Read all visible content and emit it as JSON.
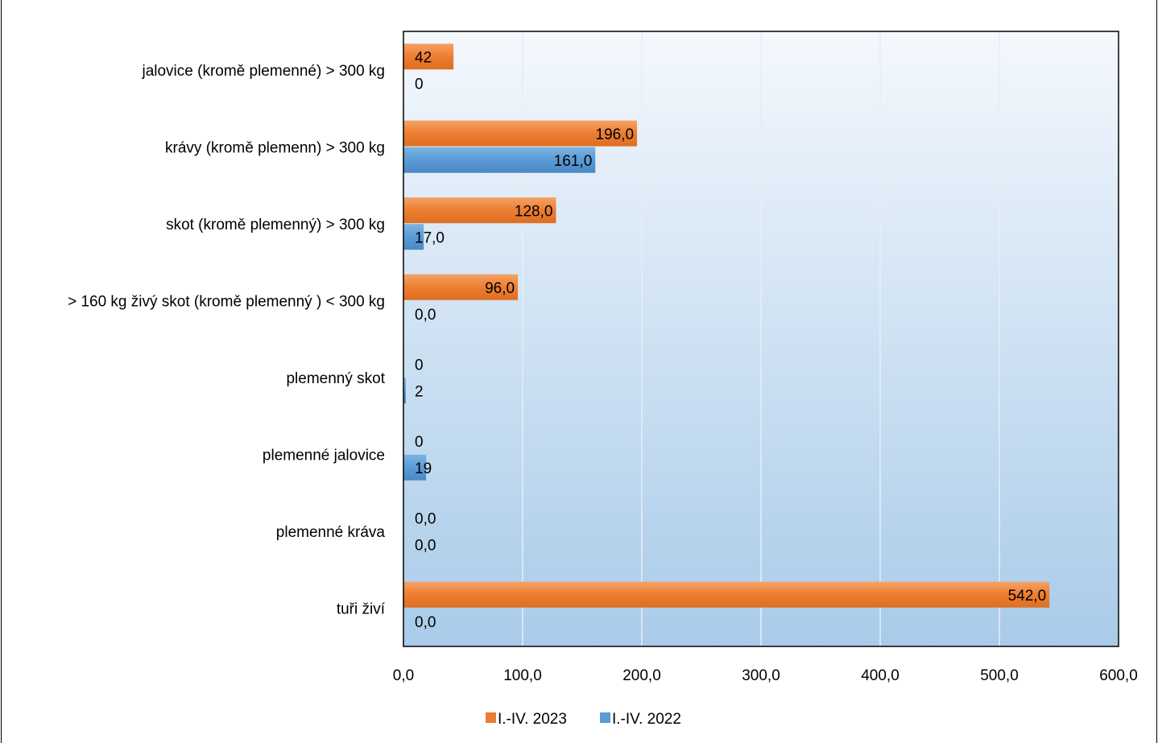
{
  "chart_data": {
    "type": "bar",
    "orientation": "horizontal",
    "categories": [
      "jalovice (kromě plemenné) > 300 kg",
      "krávy (kromě plemenn) > 300 kg",
      "skot (kromě plemenný) > 300 kg",
      "> 160 kg živý skot  (kromě plemenný ) < 300 kg",
      "plemenný skot",
      "plemenné jalovice",
      "plemenné kráva",
      "tuři živí"
    ],
    "series": [
      {
        "name": "I.-IV. 2023",
        "color": "#ED7D31",
        "values": [
          42,
          196,
          128,
          96,
          0,
          0,
          0,
          542
        ],
        "labels": [
          "42",
          "196,0",
          "128,0",
          "96,0",
          "0",
          "0",
          "0,0",
          "542,0"
        ]
      },
      {
        "name": "I.-IV. 2022",
        "color": "#5B9BD5",
        "values": [
          0,
          161,
          17,
          0,
          2,
          19,
          0,
          0
        ],
        "labels": [
          "0",
          "161,0",
          "17,0",
          "0,0",
          "2",
          "19",
          "0,0",
          "0,0"
        ]
      }
    ],
    "xlim": [
      0,
      600
    ],
    "xticks": [
      0,
      100,
      200,
      300,
      400,
      500,
      600
    ],
    "xtick_labels": [
      "0,0",
      "100,0",
      "200,0",
      "300,0",
      "400,0",
      "500,0",
      "600,0"
    ],
    "grid": true,
    "legend_position": "bottom"
  }
}
